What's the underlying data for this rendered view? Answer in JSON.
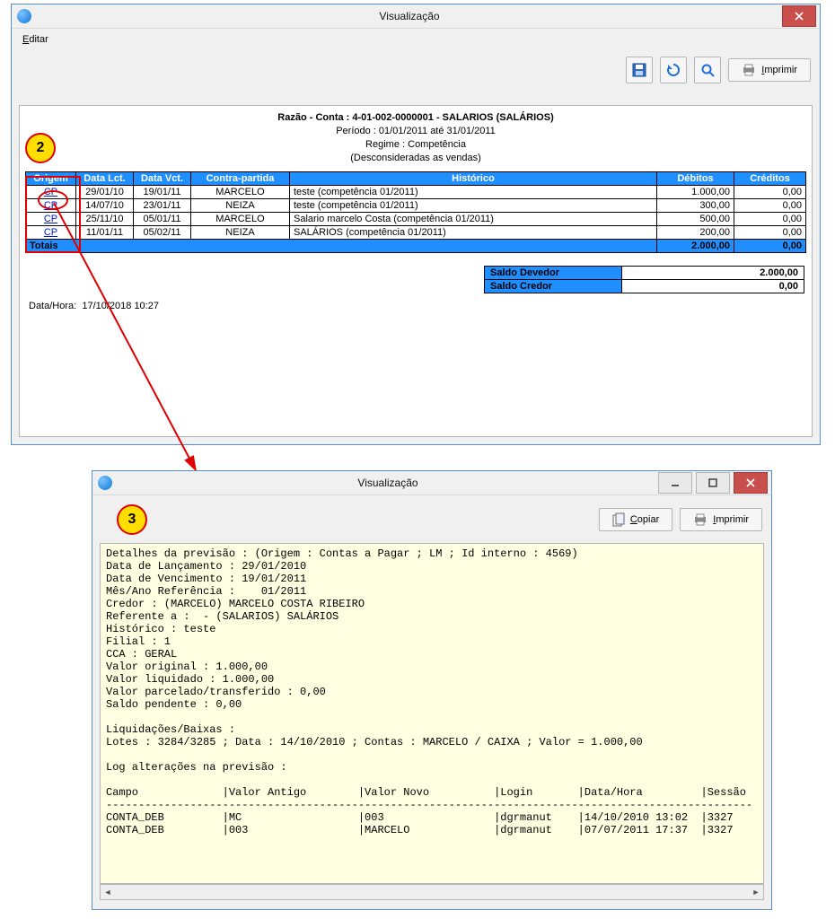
{
  "colors": {
    "window_border": "#5a8fc8",
    "chrome_bg": "#f0f0f0",
    "button_bg": "#f6f6f6",
    "button_border": "#b5b5b5",
    "close_bg": "#c94f4c",
    "header_bg": "#1f8fff",
    "header_fg": "#ffffff",
    "link": "#0018c8",
    "annotation_red": "#e00000",
    "annotation_yellow": "#ffde00",
    "detail_bg": "#ffffe1"
  },
  "callouts": {
    "badge2": "2",
    "badge3": "3"
  },
  "win1": {
    "title": "Visualização",
    "menu": {
      "editar": "Editar"
    },
    "toolbar": {
      "save_icon": "floppy-icon",
      "refresh_icon": "refresh-icon",
      "zoom_icon": "zoom-icon",
      "print_label": "Imprimir"
    },
    "report": {
      "line1": "Razão - Conta : 4-01-002-0000001 - SALARIOS (SALÁRIOS)",
      "line2": "Período : 01/01/2011 até 31/01/2011",
      "line3": "Regime : Competência",
      "line4": "(Desconsideradas as vendas)"
    },
    "table": {
      "headers": {
        "origem": "Origem",
        "data_lct": "Data Lct.",
        "data_vct": "Data Vct.",
        "contra": "Contra-partida",
        "historico": "Histórico",
        "debitos": "Débitos",
        "creditos": "Créditos"
      },
      "rows": [
        {
          "origem": "CP",
          "data_lct": "29/01/10",
          "data_vct": "19/01/11",
          "contra": "MARCELO",
          "historico": "teste (competência 01/2011)",
          "deb": "1.000,00",
          "cred": "0,00"
        },
        {
          "origem": "CP",
          "data_lct": "14/07/10",
          "data_vct": "23/01/11",
          "contra": "NEIZA",
          "historico": "teste (competência 01/2011)",
          "deb": "300,00",
          "cred": "0,00"
        },
        {
          "origem": "CP",
          "data_lct": "25/11/10",
          "data_vct": "05/01/11",
          "contra": "MARCELO",
          "historico": "Salario marcelo Costa (competência 01/2011)",
          "deb": "500,00",
          "cred": "0,00"
        },
        {
          "origem": "CP",
          "data_lct": "11/01/11",
          "data_vct": "05/02/11",
          "contra": "NEIZA",
          "historico": "SALÁRIOS (competência 01/2011)",
          "deb": "200,00",
          "cred": "0,00"
        }
      ],
      "totais_label": "Totais",
      "totais_deb": "2.000,00",
      "totais_cred": "0,00"
    },
    "saldo": {
      "devedor_label": "Saldo Devedor",
      "devedor_val": "2.000,00",
      "credor_label": "Saldo Credor",
      "credor_val": "0,00"
    },
    "timestamp_label": "Data/Hora:",
    "timestamp_val": "17/10/2018 10:27"
  },
  "win2": {
    "title": "Visualização",
    "toolbar": {
      "copy_label": "Copiar",
      "print_label": "Imprimir"
    },
    "body": "Detalhes da previsão : (Origem : Contas a Pagar ; LM ; Id interno : 4569)\nData de Lançamento : 29/01/2010\nData de Vencimento : 19/01/2011\nMês/Ano Referência :    01/2011\nCredor : (MARCELO) MARCELO COSTA RIBEIRO\nReferente a :  - (SALARIOS) SALÁRIOS\nHistórico : teste\nFilial : 1\nCCA : GERAL\nValor original : 1.000,00\nValor liquidado : 1.000,00\nValor parcelado/transferido : 0,00\nSaldo pendente : 0,00\n\nLiquidações/Baixas :\nLotes : 3284/3285 ; Data : 14/10/2010 ; Contas : MARCELO / CAIXA ; Valor = 1.000,00\n\nLog alterações na previsão :\n\nCampo             |Valor Antigo        |Valor Novo          |Login       |Data/Hora         |Sessão\n----------------------------------------------------------------------------------------------------\nCONTA_DEB         |MC                  |003                 |dgrmanut    |14/10/2010 13:02  |3327\nCONTA_DEB         |003                 |MARCELO             |dgrmanut    |07/07/2011 17:37  |3327"
  }
}
